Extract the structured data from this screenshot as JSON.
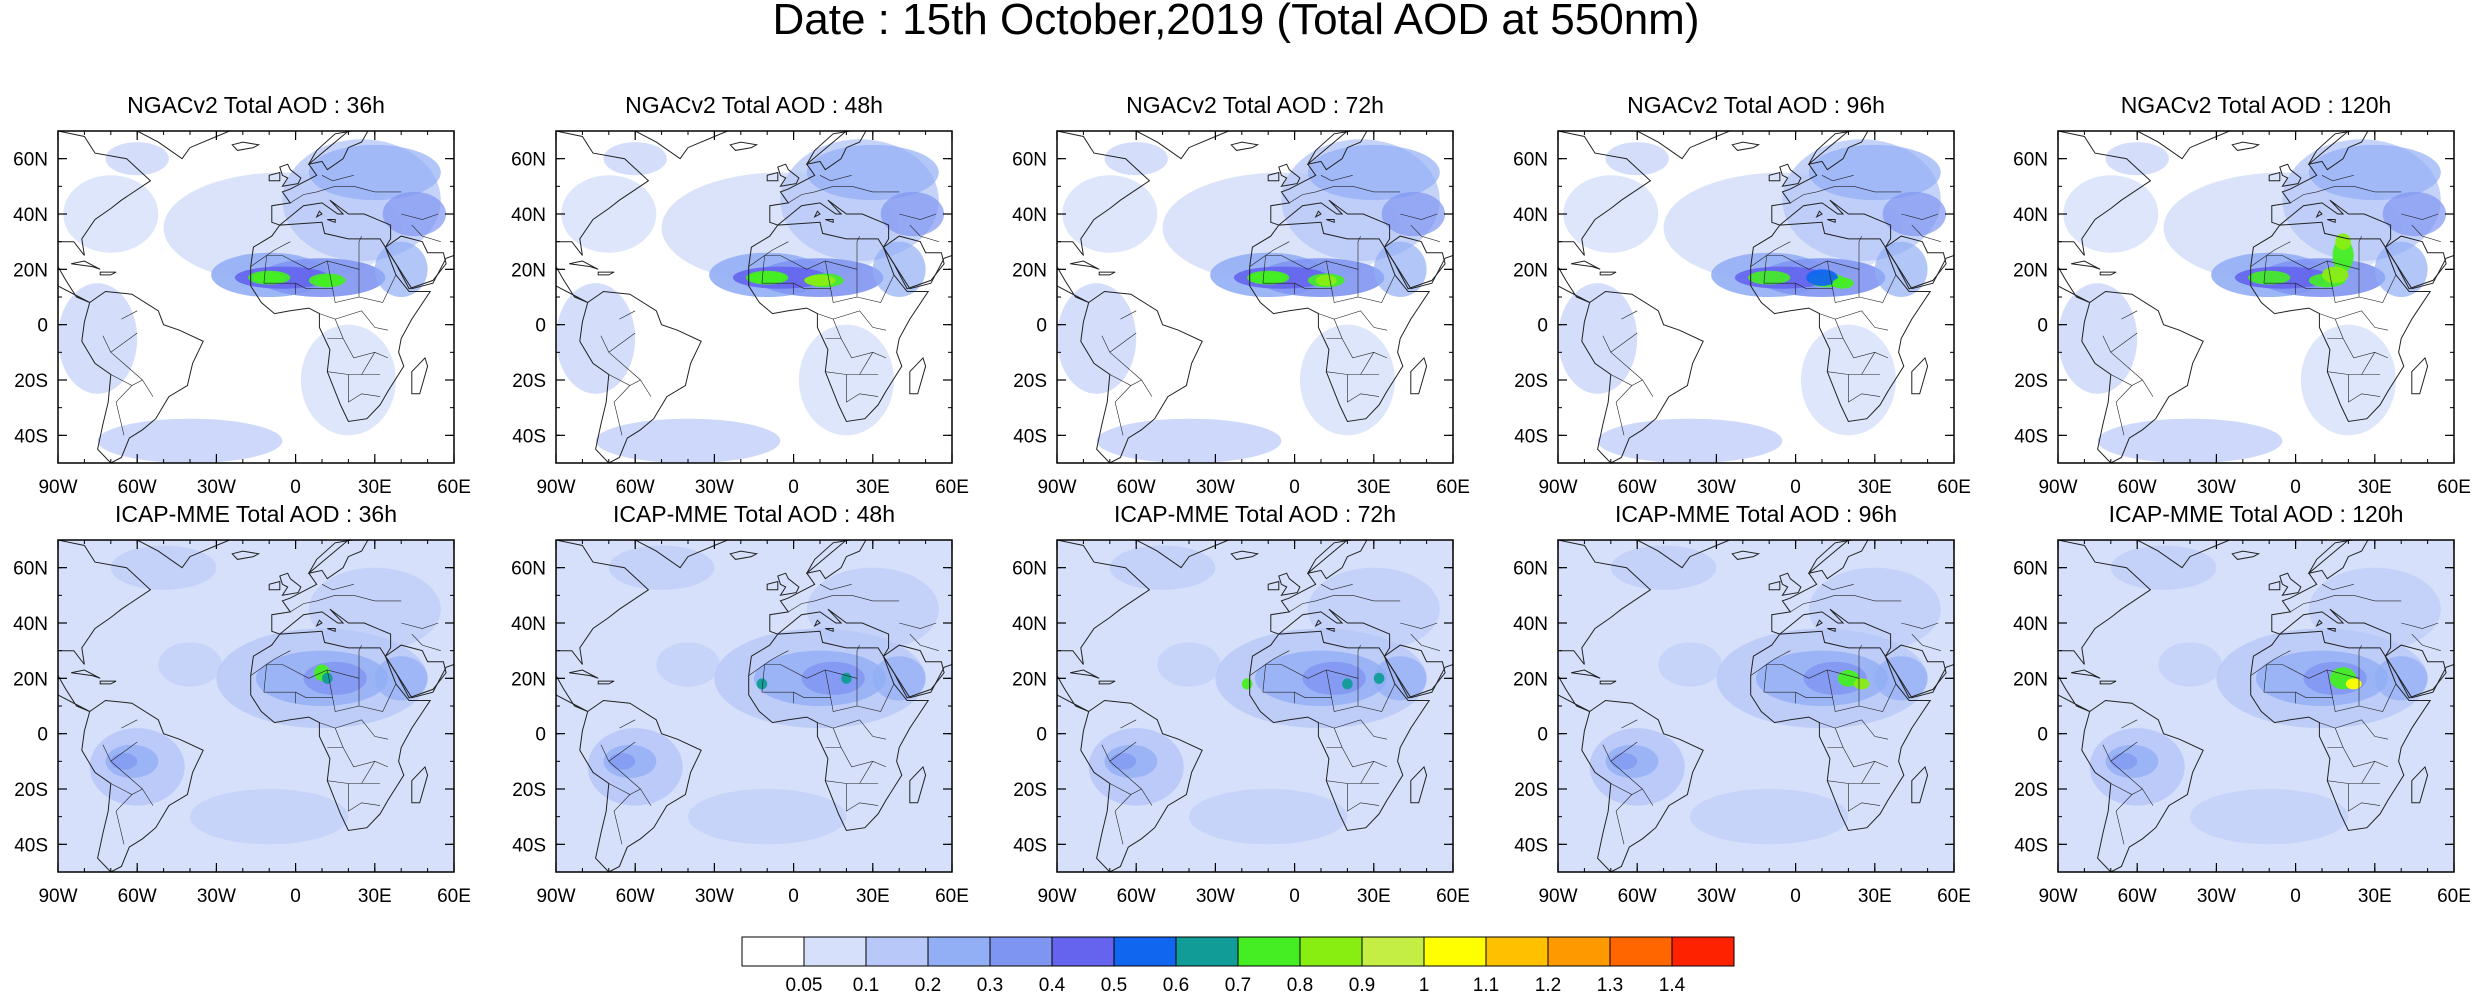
{
  "title": "Date : 15th October,2019 (Total AOD at 550nm)",
  "panels": [
    {
      "title": "NGACv2 Total AOD : 36h",
      "model": "NGACv2",
      "lead_hours": 36,
      "row": 0,
      "col": 0
    },
    {
      "title": "NGACv2 Total AOD : 48h",
      "model": "NGACv2",
      "lead_hours": 48,
      "row": 0,
      "col": 1
    },
    {
      "title": "NGACv2 Total AOD : 72h",
      "model": "NGACv2",
      "lead_hours": 72,
      "row": 0,
      "col": 2
    },
    {
      "title": "NGACv2 Total AOD : 96h",
      "model": "NGACv2",
      "lead_hours": 96,
      "row": 0,
      "col": 3
    },
    {
      "title": "NGACv2 Total AOD : 120h",
      "model": "NGACv2",
      "lead_hours": 120,
      "row": 0,
      "col": 4
    },
    {
      "title": "ICAP-MME Total AOD : 36h",
      "model": "ICAP-MME",
      "lead_hours": 36,
      "row": 1,
      "col": 0
    },
    {
      "title": "ICAP-MME Total AOD : 48h",
      "model": "ICAP-MME",
      "lead_hours": 48,
      "row": 1,
      "col": 1
    },
    {
      "title": "ICAP-MME Total AOD : 72h",
      "model": "ICAP-MME",
      "lead_hours": 72,
      "row": 1,
      "col": 2
    },
    {
      "title": "ICAP-MME Total AOD : 96h",
      "model": "ICAP-MME",
      "lead_hours": 96,
      "row": 1,
      "col": 3
    },
    {
      "title": "ICAP-MME Total AOD : 120h",
      "model": "ICAP-MME",
      "lead_hours": 120,
      "row": 1,
      "col": 4
    }
  ],
  "map_extent": {
    "lon": [
      -90,
      60
    ],
    "lat": [
      -50,
      70
    ]
  },
  "lon_ticks": [
    {
      "value": -90,
      "label": "90W"
    },
    {
      "value": -60,
      "label": "60W"
    },
    {
      "value": -30,
      "label": "30W"
    },
    {
      "value": 0,
      "label": "0"
    },
    {
      "value": 30,
      "label": "30E"
    },
    {
      "value": 60,
      "label": "60E"
    }
  ],
  "lat_ticks": [
    {
      "value": 60,
      "label": "60N"
    },
    {
      "value": 40,
      "label": "40N"
    },
    {
      "value": 20,
      "label": "20N"
    },
    {
      "value": 0,
      "label": "0"
    },
    {
      "value": -20,
      "label": "20S"
    },
    {
      "value": -40,
      "label": "40S"
    }
  ],
  "colorbar": {
    "colors": [
      "#ffffff",
      "#d6e0fa",
      "#b8c8f8",
      "#92aef5",
      "#7f95f2",
      "#6464ee",
      "#1166f0",
      "#119c98",
      "#44ee22",
      "#88ee11",
      "#c4ee44",
      "#ffff00",
      "#ffc000",
      "#ff9900",
      "#ff6600",
      "#ff2200"
    ],
    "labels": [
      "0.05",
      "0.1",
      "0.2",
      "0.3",
      "0.4",
      "0.5",
      "0.6",
      "0.7",
      "0.8",
      "0.9",
      "1",
      "1.1",
      "1.2",
      "1.3",
      "1.4"
    ]
  },
  "colors": {
    "land_outline": "#222222",
    "background_field": "#d6e0fa",
    "clean_ocean": "#ffffff"
  }
}
